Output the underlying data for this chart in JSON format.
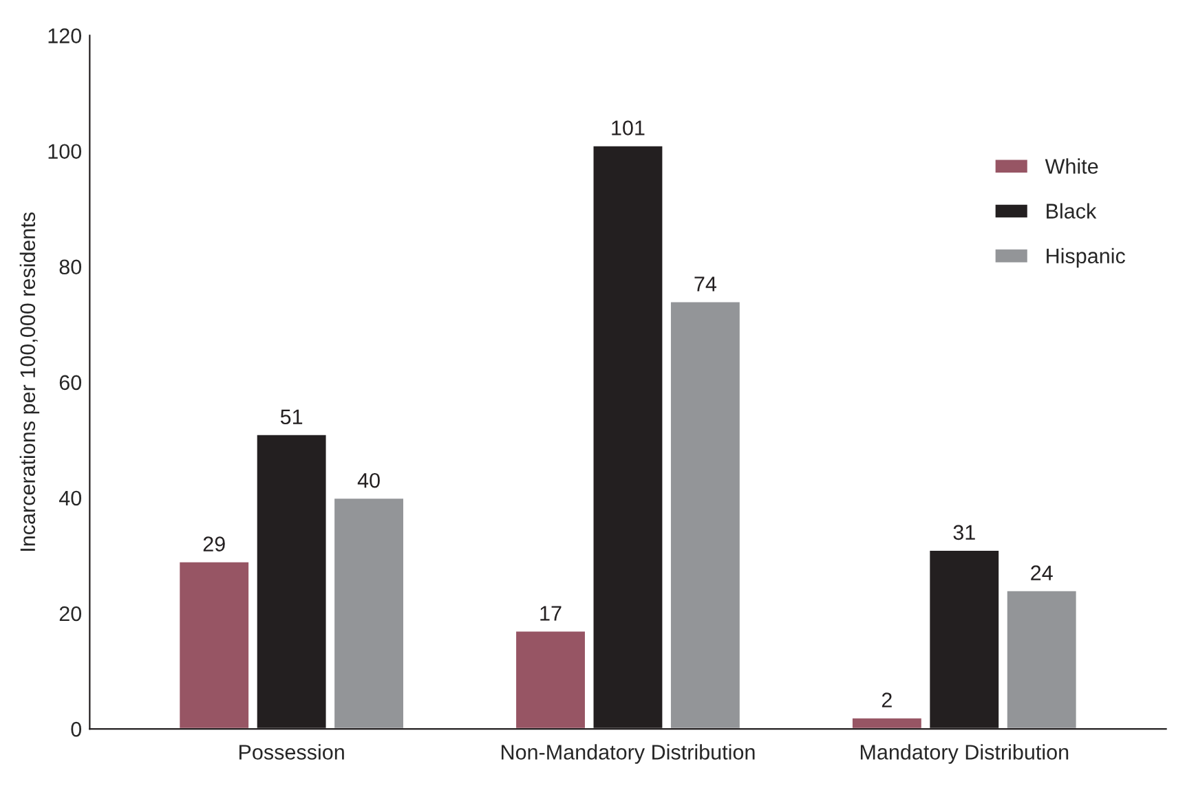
{
  "chart_data": {
    "type": "bar",
    "ylabel": "Incarcerations per 100,000 residents",
    "categories": [
      "Possession",
      "Non-Mandatory Distribution",
      "Mandatory Distribution"
    ],
    "series": [
      {
        "name": "White",
        "color": "#975564",
        "values": [
          29,
          17,
          2
        ]
      },
      {
        "name": "Black",
        "color": "#231f20",
        "values": [
          51,
          101,
          31
        ]
      },
      {
        "name": "Hispanic",
        "color": "#939598",
        "values": [
          40,
          74,
          24
        ]
      }
    ],
    "ylim": [
      0,
      120
    ],
    "yticks": [
      0,
      20,
      40,
      60,
      80,
      100,
      120
    ],
    "grid": false,
    "legend": "top right",
    "data_labels": true
  }
}
